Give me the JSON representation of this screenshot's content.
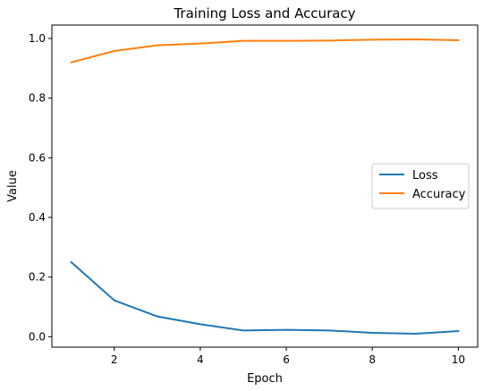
{
  "chart_data": {
    "type": "line",
    "title": "Training Loss and Accuracy",
    "xlabel": "Epoch",
    "ylabel": "Value",
    "xlim": [
      0.55,
      10.45
    ],
    "ylim": [
      -0.035,
      1.045
    ],
    "xticks": [
      2,
      4,
      6,
      8,
      10
    ],
    "yticks": [
      0.0,
      0.2,
      0.4,
      0.6,
      0.8,
      1.0
    ],
    "grid": false,
    "legend_position": "center-right",
    "x": [
      1,
      2,
      3,
      4,
      5,
      6,
      7,
      8,
      9,
      10
    ],
    "series": [
      {
        "name": "Loss",
        "color": "#1f77b4",
        "values": [
          0.25,
          0.122,
          0.068,
          0.042,
          0.021,
          0.023,
          0.021,
          0.013,
          0.01,
          0.019
        ]
      },
      {
        "name": "Accuracy",
        "color": "#ff7f0e",
        "values": [
          0.92,
          0.958,
          0.977,
          0.983,
          0.992,
          0.992,
          0.993,
          0.996,
          0.997,
          0.994
        ]
      }
    ]
  }
}
